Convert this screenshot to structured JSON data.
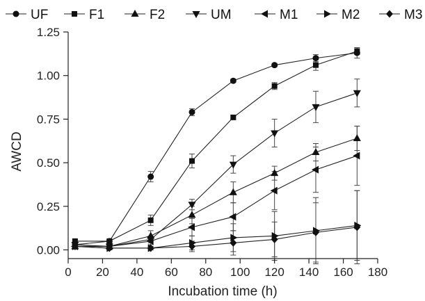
{
  "chart_data": {
    "type": "line",
    "xlabel": "Incubation time (h)",
    "ylabel": "AWCD",
    "xlim": [
      0,
      180
    ],
    "ylim": [
      -0.05,
      1.25
    ],
    "xticks": [
      "0",
      "20",
      "40",
      "60",
      "80",
      "100",
      "120",
      "140",
      "160",
      "180"
    ],
    "yticks": [
      "0.00",
      "0.25",
      "0.50",
      "0.75",
      "1.00",
      "1.25"
    ],
    "x": [
      4,
      24,
      48,
      72,
      96,
      120,
      144,
      168
    ],
    "legend_position": "top",
    "series": [
      {
        "name": "UF",
        "marker": "circle",
        "values": [
          0.03,
          0.05,
          0.42,
          0.79,
          0.97,
          1.06,
          1.1,
          1.13
        ],
        "errors": [
          0.01,
          0.01,
          0.03,
          0.02,
          0.01,
          0.01,
          0.02,
          0.03
        ]
      },
      {
        "name": "F1",
        "marker": "square",
        "values": [
          0.05,
          0.05,
          0.17,
          0.51,
          0.76,
          0.94,
          1.06,
          1.14
        ],
        "errors": [
          0.01,
          0.01,
          0.03,
          0.04,
          0.01,
          0.02,
          0.03,
          0.02
        ]
      },
      {
        "name": "F2",
        "marker": "triangle-up",
        "values": [
          0.02,
          0.02,
          0.08,
          0.2,
          0.33,
          0.44,
          0.56,
          0.64
        ],
        "errors": [
          0.01,
          0.01,
          0.03,
          0.05,
          0.06,
          0.04,
          0.05,
          0.07
        ]
      },
      {
        "name": "UM",
        "marker": "triangle-down",
        "values": [
          0.03,
          0.02,
          0.06,
          0.26,
          0.49,
          0.67,
          0.82,
          0.9
        ],
        "errors": [
          0.01,
          0.01,
          0.02,
          0.03,
          0.05,
          0.08,
          0.09,
          0.08
        ]
      },
      {
        "name": "M1",
        "marker": "triangle-left",
        "values": [
          0.02,
          0.02,
          0.05,
          0.13,
          0.19,
          0.34,
          0.46,
          0.54
        ],
        "errors": [
          0.01,
          0.01,
          0.02,
          0.05,
          0.08,
          0.11,
          0.13,
          0.17
        ]
      },
      {
        "name": "M2",
        "marker": "triangle-right",
        "values": [
          0.02,
          0.01,
          0.01,
          0.04,
          0.07,
          0.08,
          0.11,
          0.14
        ],
        "errors": [
          0.01,
          0.01,
          0.01,
          0.04,
          0.08,
          0.14,
          0.19,
          0.2
        ]
      },
      {
        "name": "M3",
        "marker": "diamond",
        "values": [
          0.02,
          0.01,
          0.01,
          0.02,
          0.04,
          0.06,
          0.1,
          0.13
        ],
        "errors": [
          0.01,
          0.01,
          0.01,
          0.03,
          0.07,
          0.1,
          0.17,
          0.21
        ]
      }
    ]
  }
}
